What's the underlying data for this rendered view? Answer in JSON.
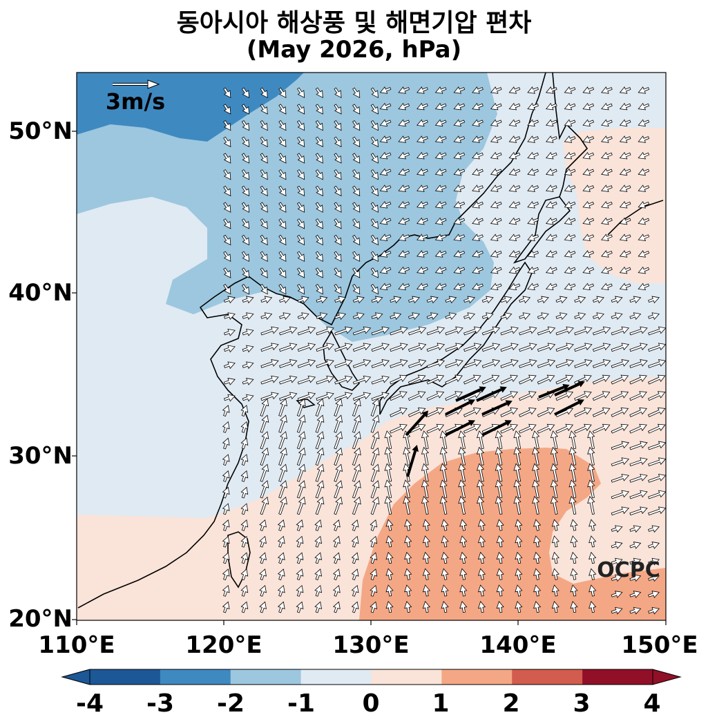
{
  "title": "동아시아 해상풍 및 해면기압 편차",
  "subtitle": "(May 2026, hPa)",
  "reference_vector_label": "3m/s",
  "watermark": "OCPC",
  "lat_ticks": [
    "50°N",
    "40°N",
    "30°N",
    "20°N"
  ],
  "lon_ticks": [
    "110°E",
    "120°E",
    "130°E",
    "140°E",
    "150°E"
  ],
  "colorbar": {
    "ticks": [
      "-4",
      "-3",
      "-2",
      "-1",
      "0",
      "1",
      "2",
      "3",
      "4"
    ],
    "colors": [
      "#1c5796",
      "#3f89c1",
      "#9cc7df",
      "#e0eaf3",
      "#fae3d8",
      "#f4a785",
      "#d25c4d",
      "#920f28"
    ]
  },
  "map": {
    "extent": {
      "lon": [
        110,
        150
      ],
      "lat": [
        20,
        53.5
      ]
    },
    "fill_colors": {
      "-3": "#3f89c1",
      "-2": "#9cc7df",
      "-1": "#e0eaf3",
      "0": "#fae3d8",
      "1": "#f4a785"
    }
  }
}
